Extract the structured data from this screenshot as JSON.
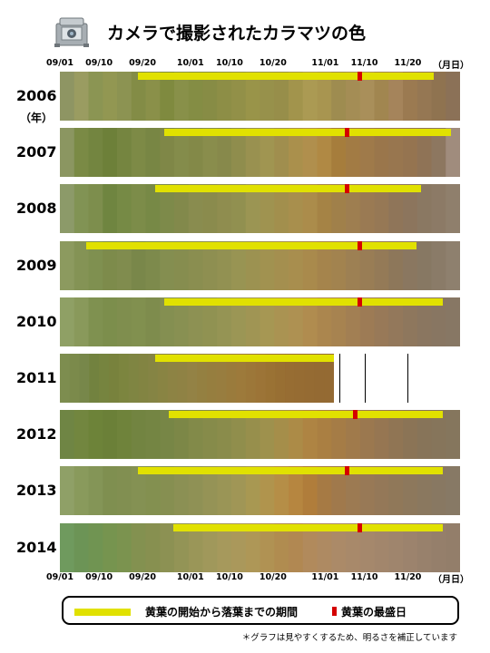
{
  "title": "カメラで撮影されたカラマツの色",
  "footnote": "＊グラフは見やすくするため、明るさを補正しています",
  "icons": {
    "camera": "camera-icon"
  },
  "colors": {
    "period": "#e1e100",
    "peak": "#d40000"
  },
  "legend": {
    "period_label": "黄葉の開始から落葉までの期間",
    "peak_label": "黄葉の最盛日"
  },
  "chart_data": {
    "type": "heatmap",
    "x_axis": {
      "ticks": [
        "09/01",
        "09/10",
        "09/20",
        "10/01",
        "10/10",
        "10/20",
        "11/01",
        "11/10",
        "11/20"
      ],
      "tick_days": [
        0,
        9,
        19,
        30,
        39,
        49,
        61,
        70,
        80
      ],
      "unit": "（月日）",
      "range_days": [
        0,
        92
      ]
    },
    "y_unit": "（年）",
    "series": [
      {
        "year": "2006",
        "yellowing_start": "09/19",
        "leaf_fall": "11/26",
        "peak": "11/09",
        "colors": [
          "#8e9563",
          "#9a9c61",
          "#8b9553",
          "#929752",
          "#8c9352",
          "#838c46",
          "#8a9049",
          "#7f8a3f",
          "#889049",
          "#848d44",
          "#878c45",
          "#8d8e46",
          "#929048",
          "#999449",
          "#97914b",
          "#978e4a",
          "#a2944c",
          "#ab9a53",
          "#a89550",
          "#9e8c50",
          "#a48d55",
          "#a98f5a",
          "#a18650",
          "#a5845b",
          "#9b7a51",
          "#957753",
          "#8f7350",
          "#8b7157"
        ]
      },
      {
        "year": "2007",
        "yellowing_start": "09/25",
        "leaf_fall": "11/30",
        "peak": "11/06",
        "colors": [
          "#8b9661",
          "#7a8a45",
          "#738540",
          "#6d8039",
          "#758540",
          "#7d8a46",
          "#788644",
          "#7f8747",
          "#848c4b",
          "#838948",
          "#898d4c",
          "#87894b",
          "#8f8d4d",
          "#999150",
          "#a09551",
          "#a08e4e",
          "#aa904c",
          "#b08f4d",
          "#b08944",
          "#a67d3c",
          "#a27b44",
          "#9f7a4a",
          "#9a764b",
          "#98764f",
          "#957450",
          "#8f7356",
          "#8d7760",
          "#a08c7d"
        ]
      },
      {
        "year": "2008",
        "yellowing_start": "09/23",
        "leaf_fall": "11/23",
        "peak": "11/06",
        "colors": [
          "#8c9a69",
          "#819354",
          "#7d8e4d",
          "#6f8540",
          "#768a45",
          "#7c8c49",
          "#778946",
          "#7d8a4a",
          "#82894b",
          "#898c4f",
          "#8a8b4d",
          "#8f8d4f",
          "#919050",
          "#9b9553",
          "#9f9350",
          "#a28f4d",
          "#a88f4d",
          "#ab8c4b",
          "#a58345",
          "#a0804a",
          "#9e7e50",
          "#9a7a53",
          "#967855",
          "#8f7559",
          "#8c755d",
          "#8a7862",
          "#8c7a66",
          "#8f7f6c"
        ]
      },
      {
        "year": "2009",
        "yellowing_start": "09/07",
        "leaf_fall": "11/22",
        "peak": "11/09",
        "colors": [
          "#8c9a5f",
          "#849355",
          "#7f9050",
          "#7d8b4b",
          "#808c4e",
          "#79874a",
          "#7d8a4c",
          "#848e50",
          "#868d4f",
          "#8a8e50",
          "#8e8f51",
          "#929152",
          "#989453",
          "#9c9251",
          "#a19250",
          "#a48f4f",
          "#a88e4e",
          "#a98a4c",
          "#a5844c",
          "#a2834f",
          "#9d8053",
          "#997d55",
          "#947a57",
          "#8d775a",
          "#8a7760",
          "#877863",
          "#8a7b68",
          "#8e806e"
        ]
      },
      {
        "year": "2010",
        "yellowing_start": "09/25",
        "leaf_fall": "11/28",
        "peak": "11/09",
        "colors": [
          "#8fa065",
          "#89995b",
          "#7f9150",
          "#7c8e4c",
          "#7f8e4e",
          "#81904f",
          "#7e8c4d",
          "#848f51",
          "#889052",
          "#8d9153",
          "#909252",
          "#959454",
          "#9b9655",
          "#a09554",
          "#a69753",
          "#aa9352",
          "#ae9152",
          "#b08c4f",
          "#ab864e",
          "#a78350",
          "#a27f53",
          "#9d7b55",
          "#987958",
          "#93785b",
          "#8e775d",
          "#8a7660",
          "#887662",
          "#877764"
        ]
      },
      {
        "year": "2011",
        "yellowing_start": "09/23",
        "leaf_fall": "11/03",
        "peak": "",
        "last_image": "11/03",
        "colors": [
          "#7d8d4f",
          "#7b8a4b",
          "#77874a",
          "#72823f",
          "#76843f",
          "#78823d",
          "#7c853f",
          "#7f8542",
          "#828442",
          "#858444",
          "#898443",
          "#8d8344",
          "#8f8244",
          "#938245",
          "#948041",
          "#967e3f",
          "#987d3f",
          "#9a7b3c",
          "#9d7a3b",
          "#9c7739",
          "#9c7437",
          "#9a7234",
          "#986f33",
          "#976d33",
          "#966c33",
          "#956b33",
          "#946a33",
          "#946a33"
        ]
      },
      {
        "year": "2012",
        "yellowing_start": "09/26",
        "leaf_fall": "11/28",
        "peak": "11/08",
        "colors": [
          "#6f8544",
          "#72863f",
          "#6d8339",
          "#6b8038",
          "#6f833b",
          "#728441",
          "#748543",
          "#778646",
          "#7c8747",
          "#828a49",
          "#868b4a",
          "#8a8c4b",
          "#908e4c",
          "#978f4c",
          "#9e914d",
          "#a58e4a",
          "#ac8b47",
          "#ae8443",
          "#aa7f42",
          "#a57c46",
          "#a07a4b",
          "#9b784f",
          "#967652",
          "#907554",
          "#8b7456",
          "#877459",
          "#86755b",
          "#85765d"
        ]
      },
      {
        "year": "2013",
        "yellowing_start": "09/19",
        "leaf_fall": "11/28",
        "peak": "11/06",
        "colors": [
          "#8fa067",
          "#899a5c",
          "#849557",
          "#7f8f50",
          "#818f51",
          "#849153",
          "#839050",
          "#868f51",
          "#8b9054",
          "#8f9155",
          "#959356",
          "#9a9556",
          "#a09656",
          "#a89852",
          "#b0944d",
          "#b58e47",
          "#b68640",
          "#b07d3b",
          "#a67a44",
          "#a0794c",
          "#9c7a52",
          "#987956",
          "#947858",
          "#907859",
          "#8d785c",
          "#8a785f",
          "#887862",
          "#877965"
        ]
      },
      {
        "year": "2014",
        "yellowing_start": "09/27",
        "leaf_fall": "11/28",
        "peak": "11/09",
        "colors": [
          "#6f9a5e",
          "#6c9456",
          "#709452",
          "#76944f",
          "#7b934f",
          "#839150",
          "#879050",
          "#8c9153",
          "#939456",
          "#9a9658",
          "#a0985b",
          "#a6995c",
          "#aa985b",
          "#ae9757",
          "#b09253",
          "#b08c50",
          "#b18852",
          "#b18a5c",
          "#ae8a62",
          "#ab8a68",
          "#a8896a",
          "#a5886c",
          "#a2866c",
          "#9f856d",
          "#9c836d",
          "#98816c",
          "#957f6b",
          "#937e6a"
        ]
      }
    ]
  }
}
